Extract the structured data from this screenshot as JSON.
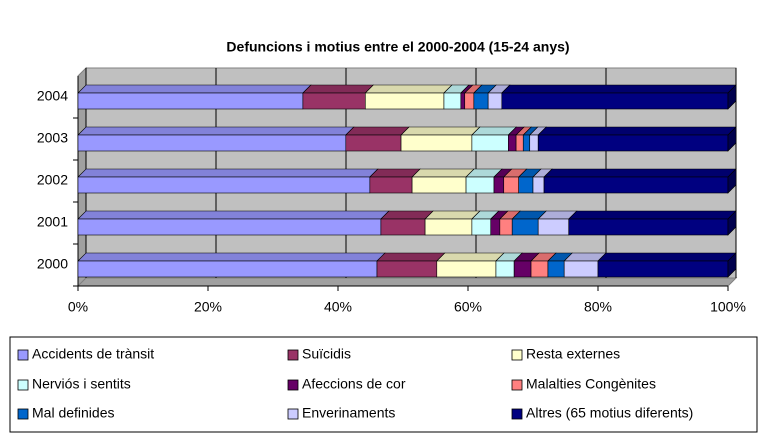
{
  "chart_data": {
    "type": "bar",
    "orientation": "horizontal",
    "stacked": "percent",
    "title": "Defuncions i motius entre el 2000-2004 (15-24 anys)",
    "categories": [
      "2000",
      "2001",
      "2002",
      "2003",
      "2004"
    ],
    "series": [
      {
        "name": "Accidents de trànsit",
        "color": "#9999ff",
        "values": [
          46.0,
          46.6,
          44.9,
          41.2,
          34.6
        ]
      },
      {
        "name": "Suïcidis",
        "color": "#993366",
        "values": [
          9.2,
          6.8,
          6.5,
          8.5,
          9.6
        ]
      },
      {
        "name": "Resta externes",
        "color": "#ffffcc",
        "values": [
          9.1,
          7.2,
          8.3,
          10.9,
          12.1
        ]
      },
      {
        "name": "Nerviós i sentits",
        "color": "#ccffff",
        "values": [
          2.8,
          2.9,
          4.3,
          5.6,
          2.6
        ]
      },
      {
        "name": "Afeccions de cor",
        "color": "#660066",
        "values": [
          2.6,
          1.4,
          1.5,
          1.2,
          0.6
        ]
      },
      {
        "name": "Malalties Congènites",
        "color": "#ff8080",
        "values": [
          2.6,
          1.9,
          2.3,
          1.1,
          1.4
        ]
      },
      {
        "name": "Mal definides",
        "color": "#0066cc",
        "values": [
          2.5,
          4.0,
          2.2,
          1.0,
          2.2
        ]
      },
      {
        "name": "Enverinaments",
        "color": "#ccccff",
        "values": [
          5.2,
          4.7,
          1.7,
          1.3,
          2.1
        ]
      },
      {
        "name": "Altres (65 motius diferents)",
        "color": "#000080",
        "values": [
          20.0,
          24.5,
          28.3,
          29.2,
          34.8
        ]
      }
    ],
    "xlim": [
      0,
      100
    ],
    "xticks": [
      {
        "value": 0,
        "label": "0%"
      },
      {
        "value": 20,
        "label": "20%"
      },
      {
        "value": 40,
        "label": "40%"
      },
      {
        "value": 60,
        "label": "60%"
      },
      {
        "value": 80,
        "label": "80%"
      },
      {
        "value": 100,
        "label": "100%"
      }
    ],
    "grid": true,
    "legend": "bottom"
  }
}
